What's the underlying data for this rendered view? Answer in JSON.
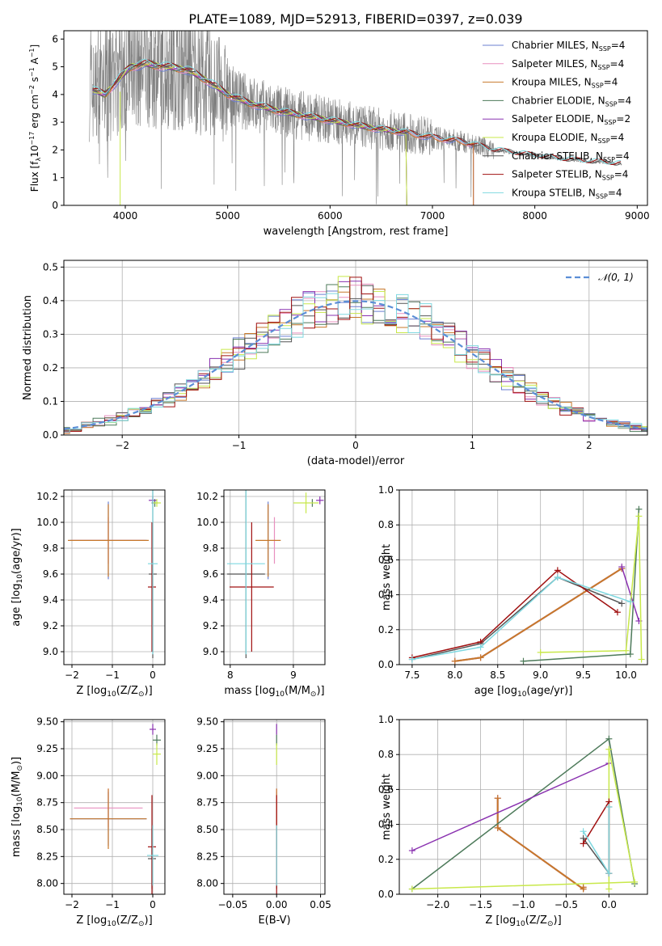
{
  "title": "PLATE=1089, MJD=52913, FIBERID=0397, z=0.039",
  "colors": {
    "chabrier_miles": "#6b7fd1",
    "salpeter_miles": "#e88fbf",
    "kroupa_miles": "#c7782a",
    "chabrier_elodie": "#4d7a5a",
    "salpeter_elodie": "#8a32b0",
    "kroupa_elodie": "#c8e84a",
    "chabrier_stelib": "#555555",
    "salpeter_stelib": "#a01010",
    "kroupa_stelib": "#7fd8e0",
    "data": "#808080",
    "gaussian": "#5b8ed6",
    "grid": "#b0b0b0"
  },
  "legend": [
    {
      "imf": "Chabrier",
      "lib": "MILES",
      "n": "4",
      "color_key": "chabrier_miles"
    },
    {
      "imf": "Salpeter",
      "lib": "MILES",
      "n": "4",
      "color_key": "salpeter_miles"
    },
    {
      "imf": "Kroupa",
      "lib": "MILES",
      "n": "4",
      "color_key": "kroupa_miles"
    },
    {
      "imf": "Chabrier",
      "lib": "ELODIE",
      "n": "4",
      "color_key": "chabrier_elodie"
    },
    {
      "imf": "Salpeter",
      "lib": "ELODIE",
      "n": "2",
      "color_key": "salpeter_elodie"
    },
    {
      "imf": "Kroupa",
      "lib": "ELODIE",
      "n": "4",
      "color_key": "kroupa_elodie"
    },
    {
      "imf": "Chabrier",
      "lib": "STELIB",
      "n": "4",
      "color_key": "chabrier_stelib"
    },
    {
      "imf": "Salpeter",
      "lib": "STELIB",
      "n": "4",
      "color_key": "salpeter_stelib"
    },
    {
      "imf": "Kroupa",
      "lib": "STELIB",
      "n": "4",
      "color_key": "kroupa_stelib"
    }
  ],
  "chart_data": [
    {
      "id": "spectrum",
      "type": "line",
      "xlabel": "wavelength [Angstrom, rest frame]",
      "xlim": [
        3400,
        9100
      ],
      "ylim": [
        0,
        6.3
      ],
      "xticks": [
        4000,
        5000,
        6000,
        7000,
        8000,
        9000
      ],
      "yticks": [
        0,
        1,
        2,
        3,
        4,
        5,
        6
      ],
      "data_range": [
        3650,
        8850
      ],
      "data_continuum": [
        [
          3650,
          4.2
        ],
        [
          3800,
          4.0
        ],
        [
          3950,
          4.6
        ],
        [
          4050,
          5.0
        ],
        [
          4200,
          5.1
        ],
        [
          4400,
          5.0
        ],
        [
          4600,
          4.9
        ],
        [
          4800,
          4.5
        ],
        [
          5000,
          4.0
        ],
        [
          5200,
          3.7
        ],
        [
          5500,
          3.4
        ],
        [
          5800,
          3.2
        ],
        [
          6100,
          3.0
        ],
        [
          6400,
          2.8
        ],
        [
          6700,
          2.65
        ],
        [
          7000,
          2.45
        ],
        [
          7300,
          2.3
        ],
        [
          7600,
          2.0
        ],
        [
          7900,
          1.85
        ],
        [
          8200,
          1.7
        ],
        [
          8500,
          1.6
        ],
        [
          8850,
          1.5
        ]
      ],
      "models_end": {
        "chabrier_miles": 7400,
        "salpeter_miles": 7400,
        "kroupa_miles": 7400,
        "chabrier_elodie": 6750,
        "salpeter_elodie": 6750,
        "kroupa_elodie": 6750,
        "chabrier_stelib": 8850,
        "salpeter_stelib": 8850,
        "kroupa_stelib": 8850
      }
    },
    {
      "id": "residuals",
      "type": "histogram",
      "xlabel": "(data-model)/error",
      "ylabel": "Normed distribution",
      "xlim": [
        -2.5,
        2.5
      ],
      "ylim": [
        0,
        0.52
      ],
      "xticks": [
        -2,
        -1,
        0,
        1,
        2
      ],
      "yticks": [
        0.0,
        0.1,
        0.2,
        0.3,
        0.4,
        0.5
      ],
      "legend_label": "𝒩(0, 1)",
      "bin_width": 0.1
    },
    {
      "id": "age_vs_z",
      "type": "errorbar",
      "xlabel_parts": [
        "Z [log",
        "10",
        "(Z/Z",
        "⊙",
        ")]"
      ],
      "ylabel_parts": [
        "age  [log",
        "10",
        "(age/yr)]"
      ],
      "xlim": [
        -2.2,
        0.3
      ],
      "ylim": [
        8.9,
        10.25
      ],
      "xticks": [
        -2,
        -1,
        0
      ],
      "yticks": [
        9.0,
        9.2,
        9.4,
        9.6,
        9.8,
        10.0,
        10.2
      ],
      "points": [
        {
          "c": "chabrier_miles",
          "x": -1.1,
          "xe": 0.95,
          "y": 9.86,
          "ye": 0.3
        },
        {
          "c": "salpeter_miles",
          "x": -1.1,
          "xe": 0.9,
          "y": 9.86,
          "ye": 0.18
        },
        {
          "c": "kroupa_miles",
          "x": -1.1,
          "xe": 1.0,
          "y": 9.86,
          "ye": 0.28
        },
        {
          "c": "chabrier_elodie",
          "x": 0.05,
          "xe": 0.08,
          "y": 10.15,
          "ye": 0.03
        },
        {
          "c": "salpeter_elodie",
          "x": 0.0,
          "xe": 0.1,
          "y": 10.17,
          "ye": 0.03
        },
        {
          "c": "kroupa_elodie",
          "x": 0.1,
          "xe": 0.1,
          "y": 10.15,
          "ye": 0.03
        },
        {
          "c": "chabrier_stelib",
          "x": 0.0,
          "xe": 0.1,
          "y": 9.6,
          "ye": 0.65
        },
        {
          "c": "salpeter_stelib",
          "x": -0.02,
          "xe": 0.1,
          "y": 9.5,
          "ye": 0.5
        },
        {
          "c": "kroupa_stelib",
          "x": 0.0,
          "xe": 0.12,
          "y": 9.68,
          "ye": 0.7
        }
      ]
    },
    {
      "id": "age_vs_mass",
      "type": "errorbar",
      "xlabel_parts": [
        "mass [log",
        "10",
        "(M/M",
        "⊙",
        ")]"
      ],
      "xlim": [
        7.9,
        9.5
      ],
      "ylim": [
        8.9,
        10.25
      ],
      "xticks": [
        8,
        9
      ],
      "yticks": [
        9.0,
        9.2,
        9.4,
        9.6,
        9.8,
        10.0,
        10.2
      ],
      "points": [
        {
          "c": "chabrier_miles",
          "x": 8.6,
          "xe": 0.0,
          "y": 9.86,
          "ye": 0.3
        },
        {
          "c": "salpeter_miles",
          "x": 8.7,
          "xe": 0.0,
          "y": 9.86,
          "ye": 0.18
        },
        {
          "c": "kroupa_miles",
          "x": 8.6,
          "xe": 0.2,
          "y": 9.86,
          "ye": 0.28
        },
        {
          "c": "chabrier_elodie",
          "x": 9.3,
          "xe": 0.0,
          "y": 10.15,
          "ye": 0.03
        },
        {
          "c": "salpeter_elodie",
          "x": 9.42,
          "xe": 0.06,
          "y": 10.17,
          "ye": 0.03
        },
        {
          "c": "kroupa_elodie",
          "x": 9.2,
          "xe": 0.2,
          "y": 10.15,
          "ye": 0.08
        },
        {
          "c": "chabrier_stelib",
          "x": 8.25,
          "xe": 0.3,
          "y": 9.6,
          "ye": 0.65
        },
        {
          "c": "salpeter_stelib",
          "x": 8.34,
          "xe": 0.35,
          "y": 9.5,
          "ye": 0.5
        },
        {
          "c": "kroupa_stelib",
          "x": 8.25,
          "xe": 0.3,
          "y": 9.68,
          "ye": 0.7
        }
      ]
    },
    {
      "id": "weight_vs_age",
      "type": "line",
      "xlabel_parts": [
        "age  [log",
        "10",
        "(age/yr)]"
      ],
      "ylabel": "mass weight",
      "xlim": [
        7.35,
        10.25
      ],
      "ylim": [
        0,
        1.0
      ],
      "xticks": [
        7.5,
        8.0,
        8.5,
        9.0,
        9.5,
        10.0
      ],
      "yticks": [
        0.0,
        0.2,
        0.4,
        0.6,
        0.8,
        1.0
      ],
      "series": [
        {
          "c": "chabrier_miles",
          "x": [
            8.0,
            8.3,
            9.95
          ],
          "y": [
            0.02,
            0.04,
            0.55
          ]
        },
        {
          "c": "salpeter_miles",
          "x": [
            8.0,
            8.3,
            9.95
          ],
          "y": [
            0.02,
            0.04,
            0.55
          ]
        },
        {
          "c": "kroupa_miles",
          "x": [
            8.0,
            8.3,
            9.95
          ],
          "y": [
            0.02,
            0.04,
            0.55
          ]
        },
        {
          "c": "chabrier_elodie",
          "x": [
            8.8,
            10.05,
            10.15
          ],
          "y": [
            0.02,
            0.06,
            0.89
          ]
        },
        {
          "c": "salpeter_elodie",
          "x": [
            9.95,
            10.15
          ],
          "y": [
            0.56,
            0.25
          ]
        },
        {
          "c": "kroupa_elodie",
          "x": [
            9.0,
            10.0,
            10.15,
            10.18
          ],
          "y": [
            0.07,
            0.08,
            0.85,
            0.03
          ]
        },
        {
          "c": "chabrier_stelib",
          "x": [
            7.5,
            8.3,
            9.2,
            9.95
          ],
          "y": [
            0.03,
            0.12,
            0.5,
            0.35
          ]
        },
        {
          "c": "salpeter_stelib",
          "x": [
            7.5,
            8.3,
            9.2,
            9.9
          ],
          "y": [
            0.04,
            0.13,
            0.54,
            0.3
          ]
        },
        {
          "c": "kroupa_stelib",
          "x": [
            7.5,
            8.3,
            9.2,
            10.05
          ],
          "y": [
            0.03,
            0.1,
            0.5,
            0.36
          ]
        }
      ]
    },
    {
      "id": "mass_vs_z",
      "type": "errorbar",
      "xlabel_parts": [
        "Z [log",
        "10",
        "(Z/Z",
        "⊙",
        ")]"
      ],
      "ylabel_parts": [
        "mass [log",
        "10",
        "(M/M",
        "⊙",
        ")]"
      ],
      "xlim": [
        -2.2,
        0.3
      ],
      "ylim": [
        7.9,
        9.52
      ],
      "xticks": [
        -2,
        -1,
        0
      ],
      "yticks": [
        8.0,
        8.25,
        8.5,
        8.75,
        9.0,
        9.25,
        9.5
      ],
      "points": [
        {
          "c": "chabrier_miles",
          "x": -1.1,
          "xe": 0.95,
          "y": 8.6,
          "ye": 0.25
        },
        {
          "c": "salpeter_miles",
          "x": -1.1,
          "xe": 0.85,
          "y": 8.7,
          "ye": 0.18
        },
        {
          "c": "kroupa_miles",
          "x": -1.1,
          "xe": 0.95,
          "y": 8.6,
          "ye": 0.28
        },
        {
          "c": "chabrier_elodie",
          "x": 0.1,
          "xe": 0.1,
          "y": 9.33,
          "ye": 0.05
        },
        {
          "c": "salpeter_elodie",
          "x": 0.0,
          "xe": 0.08,
          "y": 9.43,
          "ye": 0.05
        },
        {
          "c": "kroupa_elodie",
          "x": 0.1,
          "xe": 0.1,
          "y": 9.2,
          "ye": 0.1
        },
        {
          "c": "chabrier_stelib",
          "x": -0.02,
          "xe": 0.1,
          "y": 8.23,
          "ye": 0.28
        },
        {
          "c": "salpeter_stelib",
          "x": -0.02,
          "xe": 0.1,
          "y": 8.34,
          "ye": 0.48
        },
        {
          "c": "kroupa_stelib",
          "x": 0.0,
          "xe": 0.14,
          "y": 8.26,
          "ye": 0.28
        }
      ]
    },
    {
      "id": "mass_vs_ebv",
      "type": "errorbar",
      "xlabel": "E(B-V)",
      "xlim": [
        -0.06,
        0.055
      ],
      "ylim": [
        7.9,
        9.52
      ],
      "xticks": [
        -0.05,
        0.0,
        0.05
      ],
      "xtick_labels": [
        "−0.05",
        "0.00",
        "0.05"
      ],
      "yticks": [
        8.0,
        8.25,
        8.5,
        8.75,
        9.0,
        9.25,
        9.5
      ],
      "points": [
        {
          "c": "chabrier_miles",
          "x": 0.0,
          "xe": 0.0,
          "y": 8.6,
          "ye": 0.25
        },
        {
          "c": "salpeter_miles",
          "x": 0.0,
          "xe": 0.0,
          "y": 8.7,
          "ye": 0.18
        },
        {
          "c": "kroupa_miles",
          "x": 0.0,
          "xe": 0.0,
          "y": 8.6,
          "ye": 0.28
        },
        {
          "c": "chabrier_elodie",
          "x": 0.0,
          "xe": 0.0,
          "y": 9.33,
          "ye": 0.05
        },
        {
          "c": "salpeter_elodie",
          "x": 0.0,
          "xe": 0.0,
          "y": 9.43,
          "ye": 0.05
        },
        {
          "c": "kroupa_elodie",
          "x": 0.0,
          "xe": 0.0,
          "y": 9.2,
          "ye": 0.1
        },
        {
          "c": "chabrier_stelib",
          "x": 0.0,
          "xe": 0.0,
          "y": 8.23,
          "ye": 0.28
        },
        {
          "c": "salpeter_stelib",
          "x": 0.0,
          "xe": 0.0,
          "y": 8.34,
          "ye": 0.48
        },
        {
          "c": "kroupa_stelib",
          "x": 0.0,
          "xe": 0.0,
          "y": 8.26,
          "ye": 0.28
        }
      ]
    },
    {
      "id": "weight_vs_z",
      "type": "line",
      "xlabel_parts": [
        "Z [log",
        "10",
        "(Z/Z",
        "⊙",
        ")]"
      ],
      "ylabel": "mass weight",
      "xlim": [
        -2.45,
        0.45
      ],
      "ylim": [
        0,
        1.0
      ],
      "xticks": [
        -2.0,
        -1.5,
        -1.0,
        -0.5,
        0.0
      ],
      "xtick_labels": [
        "−2.0",
        "−1.5",
        "−1.0",
        "−0.5",
        "0.0"
      ],
      "yticks": [
        0.0,
        0.2,
        0.4,
        0.6,
        0.8,
        1.0
      ],
      "series": [
        {
          "c": "chabrier_miles",
          "x": [
            -1.3,
            -1.3,
            -0.3,
            -0.3
          ],
          "y": [
            0.55,
            0.38,
            0.03,
            0.04
          ]
        },
        {
          "c": "salpeter_miles",
          "x": [
            -1.3,
            -1.3,
            -0.3,
            -0.3
          ],
          "y": [
            0.55,
            0.38,
            0.03,
            0.04
          ]
        },
        {
          "c": "kroupa_miles",
          "x": [
            -1.3,
            -1.3,
            -0.3,
            -0.3
          ],
          "y": [
            0.55,
            0.38,
            0.03,
            0.04
          ]
        },
        {
          "c": "chabrier_elodie",
          "x": [
            -2.3,
            0.0,
            0.3
          ],
          "y": [
            0.03,
            0.89,
            0.06
          ]
        },
        {
          "c": "salpeter_elodie",
          "x": [
            -2.3,
            0.0
          ],
          "y": [
            0.25,
            0.75
          ]
        },
        {
          "c": "kroupa_elodie",
          "x": [
            -2.3,
            0.3,
            0.0,
            0.0
          ],
          "y": [
            0.03,
            0.07,
            0.83,
            0.03
          ]
        },
        {
          "c": "chabrier_stelib",
          "x": [
            -0.3,
            0.0,
            0.0
          ],
          "y": [
            0.32,
            0.12,
            0.5
          ]
        },
        {
          "c": "salpeter_stelib",
          "x": [
            -0.3,
            0.0,
            0.0
          ],
          "y": [
            0.29,
            0.53,
            0.12
          ]
        },
        {
          "c": "kroupa_stelib",
          "x": [
            -0.3,
            0.0,
            0.0
          ],
          "y": [
            0.36,
            0.12,
            0.5
          ]
        }
      ]
    }
  ],
  "spectrum_ylabel_parts": [
    "Flux [f",
    "λ",
    "10",
    "−17",
    " erg cm",
    "−2",
    " s",
    "−1",
    " A",
    "−1",
    "]"
  ]
}
